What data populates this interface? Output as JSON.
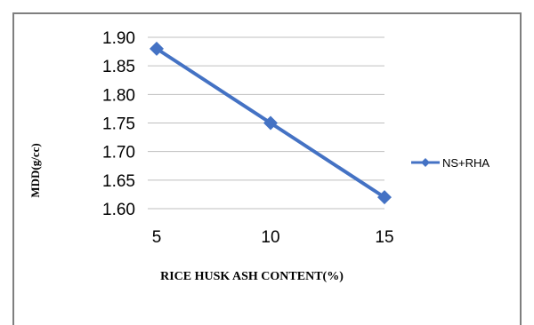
{
  "chart_data": {
    "type": "line",
    "x": [
      5,
      10,
      15
    ],
    "series": [
      {
        "name": "NS+RHA",
        "values": [
          1.88,
          1.75,
          1.62
        ],
        "color": "#4472c4"
      }
    ],
    "xlabel": "RICE HUSK ASH CONTENT(%)",
    "ylabel": "MDD(g/cc)",
    "ylim": [
      1.6,
      1.9
    ],
    "y_ticks": [
      "1.90",
      "1.85",
      "1.80",
      "1.75",
      "1.70",
      "1.65",
      "1.60"
    ],
    "x_ticks": [
      "5",
      "10",
      "15"
    ],
    "grid": true,
    "legend_position": "right",
    "marker": "diamond"
  }
}
